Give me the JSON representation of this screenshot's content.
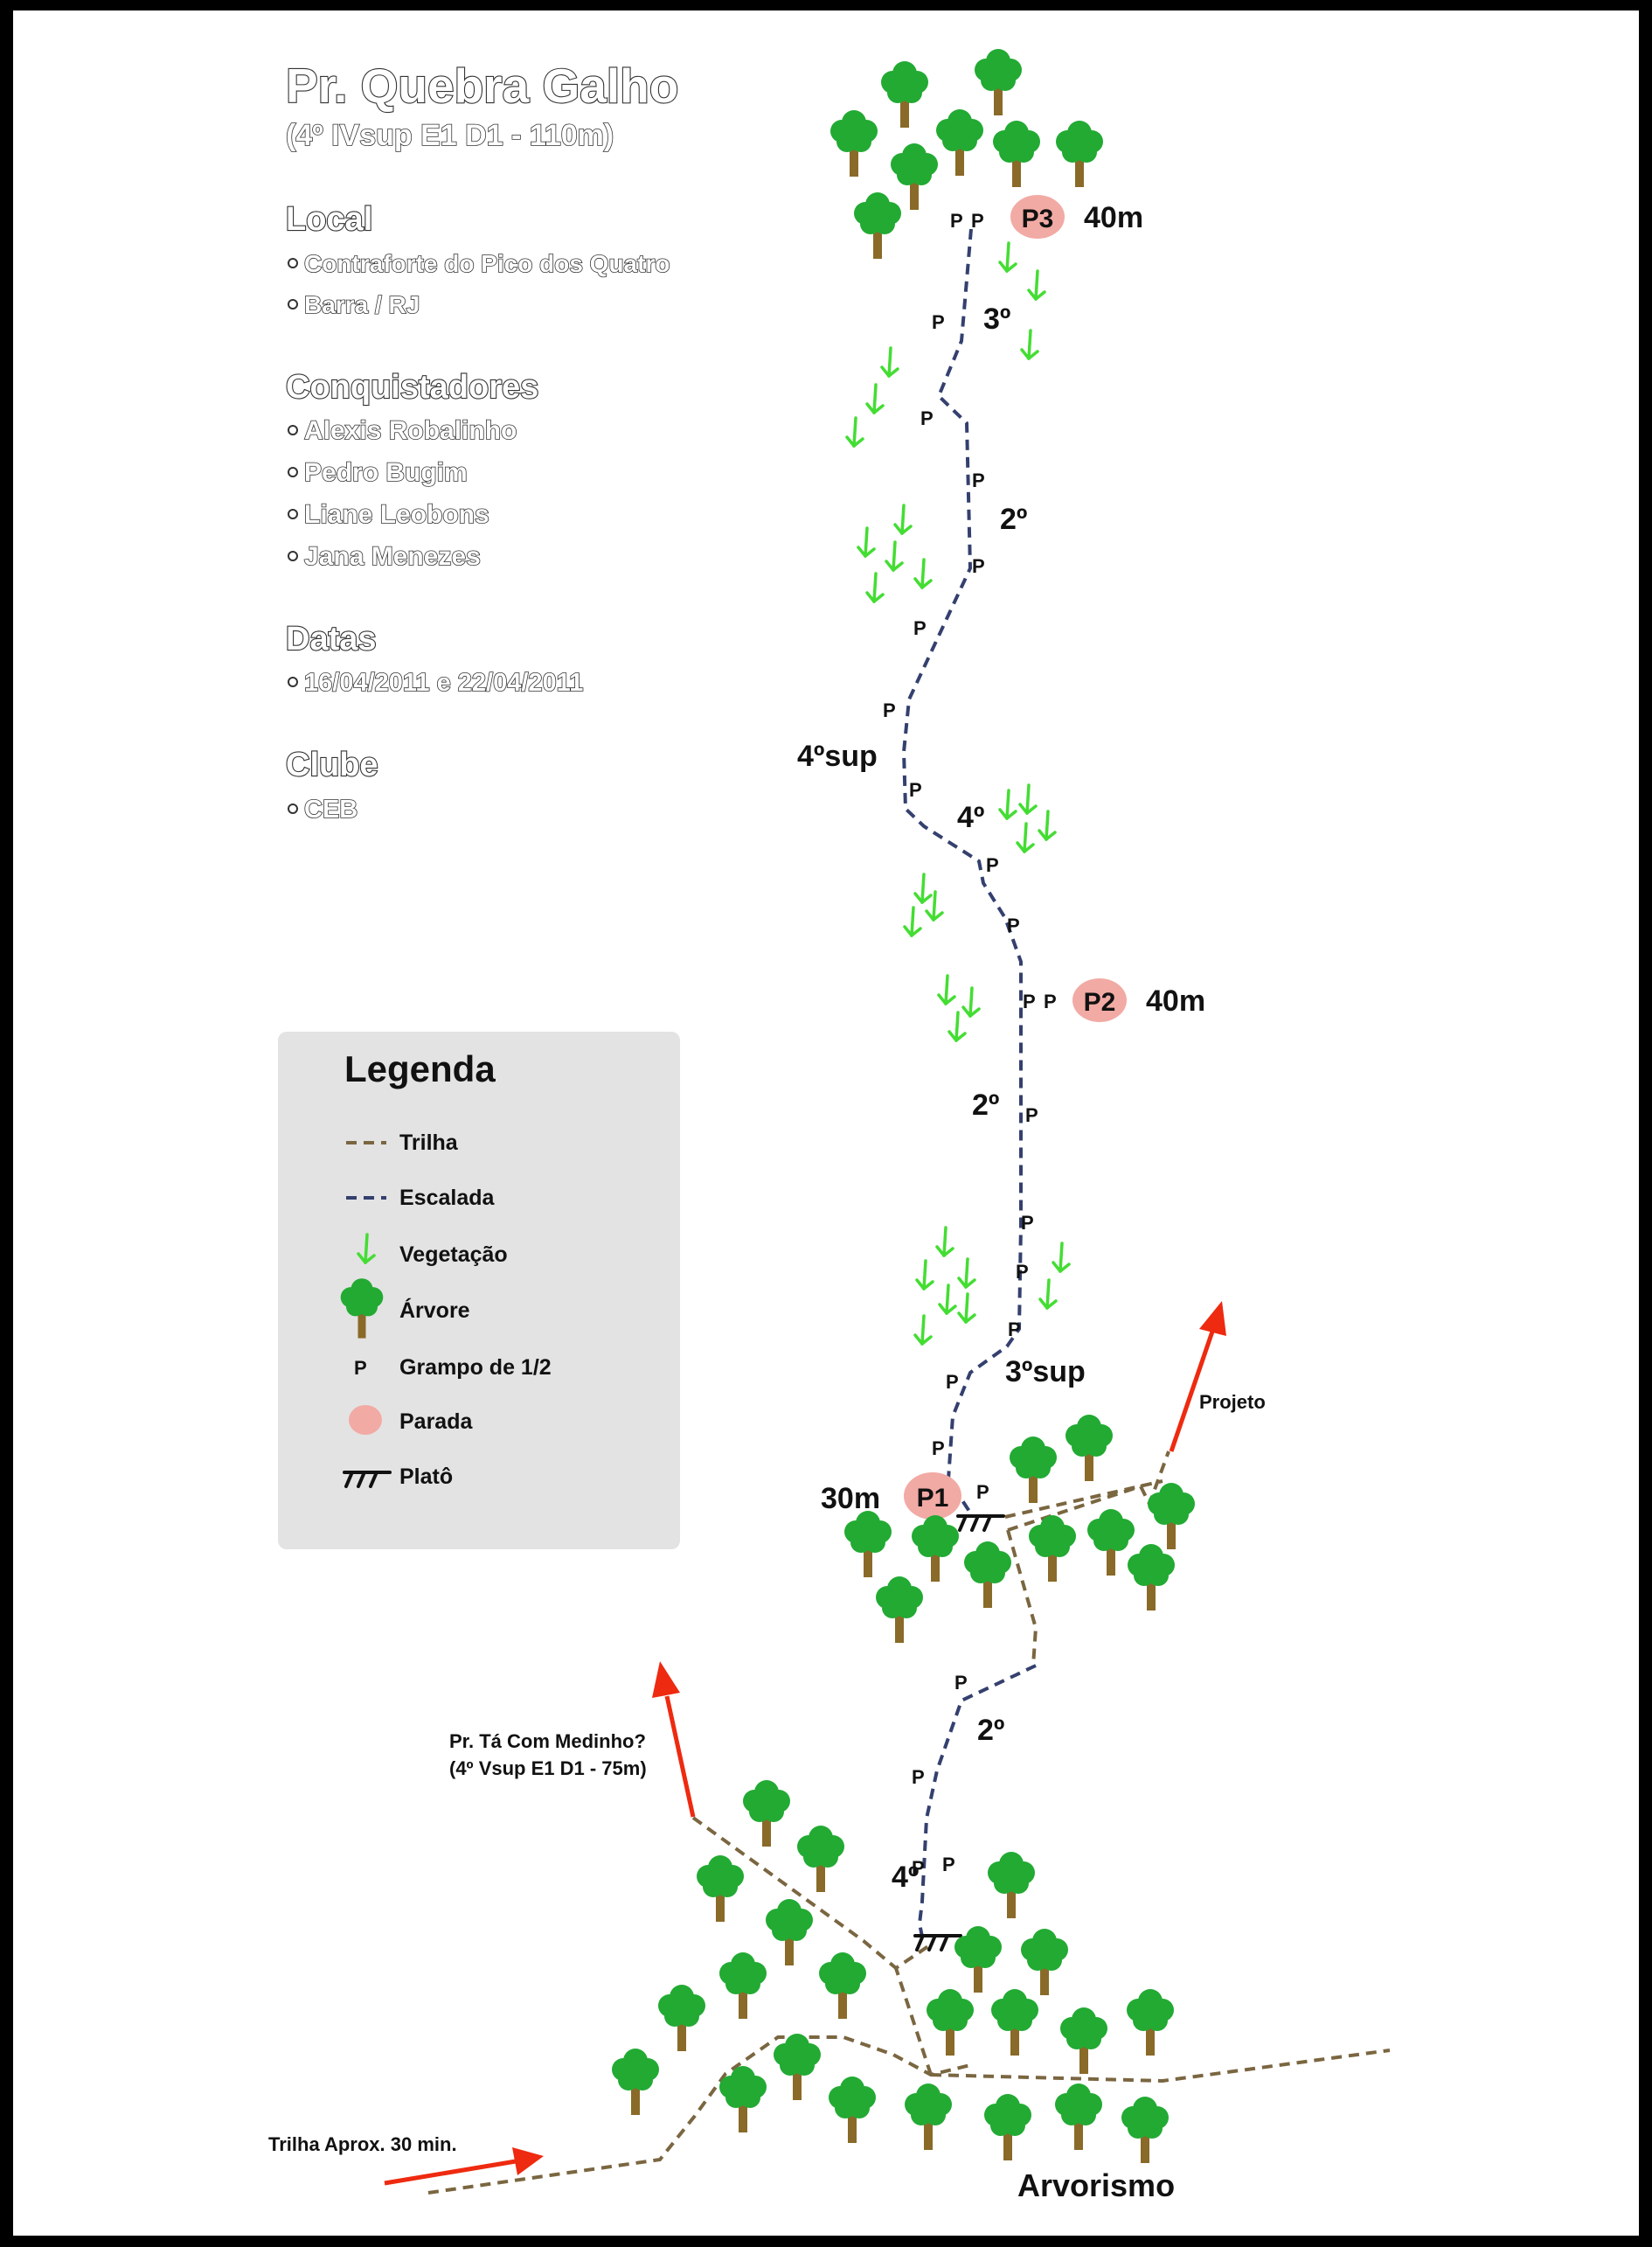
{
  "title": {
    "name": "Pr. Quebra Galho",
    "grade": "(4º IVsup E1 D1 - 110m)"
  },
  "info": {
    "local_heading": "Local",
    "local_items": [
      "Contraforte do Pico dos Quatro",
      "Barra / RJ"
    ],
    "conquistadores_heading": "Conquistadores",
    "conquistadores_items": [
      "Alexis Robalinho",
      "Pedro Bugim",
      "Liane Leobons",
      "Jana Menezes"
    ],
    "datas_heading": "Datas",
    "datas_items": [
      "16/04/2011 e 22/04/2011"
    ],
    "clube_heading": "Clube",
    "clube_items": [
      "CEB"
    ]
  },
  "legend": {
    "title": "Legenda",
    "items": {
      "trilha": "Trilha",
      "escalada": "Escalada",
      "vegetacao": "Vegetação",
      "arvore": "Árvore",
      "grampo": "Grampo de 1/2",
      "parada": "Parada",
      "plato": "Platô"
    }
  },
  "route": {
    "bolt_label": "P",
    "stations": [
      {
        "name": "P1",
        "length": "30m"
      },
      {
        "name": "P2",
        "length": "40m"
      },
      {
        "name": "P3",
        "length": "40m"
      }
    ],
    "grades": {
      "g_3_top": "3º",
      "g_2_upper": "2º",
      "g_4sup": "4ºsup",
      "g_4_mid": "4º",
      "g_2_mid": "2º",
      "g_3sup": "3ºsup",
      "g_2_low": "2º",
      "g_4_low": "4º"
    }
  },
  "labels": {
    "projeto": "Projeto",
    "neighbor_route_name": "Pr. Tá Com Medinho?",
    "neighbor_route_grade": "(4º Vsup E1 D1 - 75m)",
    "approach": "Trilha Aprox. 30 min.",
    "arvorismo": "Arvorismo"
  },
  "colors": {
    "trail": "#7a6640",
    "climb": "#34406e",
    "vegetation": "#44dd33",
    "tree_crown": "#22aa33",
    "tree_trunk": "#8a6a28",
    "station": "#f2aaa4",
    "arrow": "#ee2a10",
    "legend_bg": "#e3e3e3"
  }
}
